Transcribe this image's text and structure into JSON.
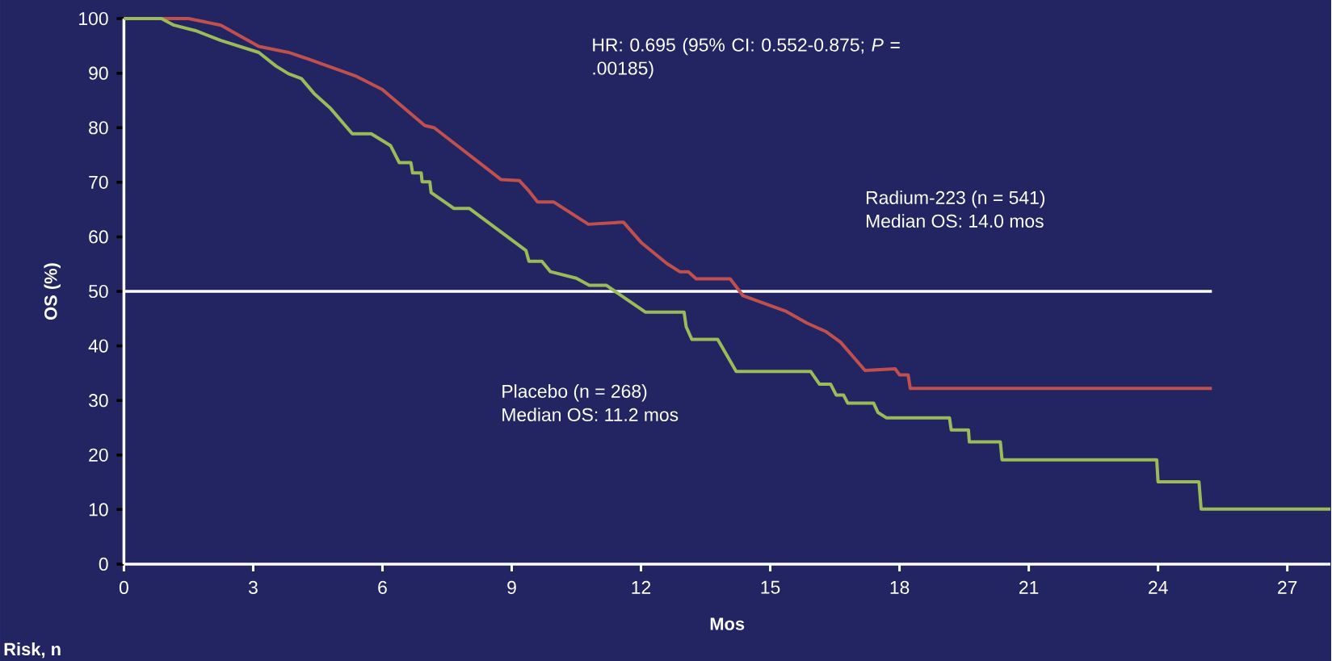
{
  "chart_data": {
    "type": "line",
    "xlabel": "Mos",
    "ylabel": "OS (%)",
    "xlim": [
      0,
      28
    ],
    "ylim": [
      0,
      100
    ],
    "xticks": [
      0,
      3,
      6,
      9,
      12,
      15,
      18,
      21,
      24,
      27
    ],
    "yticks": [
      0,
      10,
      20,
      30,
      40,
      50,
      60,
      70,
      80,
      90,
      100
    ],
    "grid": false,
    "ref_lines": [
      {
        "axis": "y",
        "value": 50,
        "color": "#ffffff"
      }
    ],
    "annotations": [
      "HR: 0.695 (95% CI: 0.552-0.875; *P* = .00185)",
      "Radium-223 (n = 541)",
      "Median OS: 14.0 mos",
      "Placebo (n = 268)",
      "Median OS: 11.2 mos",
      "Risk, n"
    ],
    "series": [
      {
        "color": "#c0504d",
        "x": [
          0,
          1.5,
          2.25,
          3.13,
          3.82,
          4.2,
          5.4,
          6.0,
          6.98,
          7.2,
          8.75,
          9.18,
          9.4,
          9.6,
          9.97,
          10.78,
          11.59,
          12.0,
          12.6,
          12.9,
          13.1,
          13.28,
          14.07,
          14.37,
          14.86,
          15.35,
          15.85,
          16.3,
          16.63,
          17.2,
          17.9,
          18.0,
          18.2,
          18.25,
          25.25
        ],
        "values": [
          100,
          100,
          98.8,
          94.9,
          93.8,
          92.8,
          89.4,
          87,
          80.4,
          80,
          70.5,
          70.3,
          68.4,
          66.4,
          66.4,
          62.3,
          62.7,
          59,
          55.1,
          53.6,
          53.6,
          52.3,
          52.3,
          49.2,
          47.8,
          46.4,
          44.2,
          42.6,
          40.7,
          35.5,
          35.8,
          34.7,
          34.7,
          32.2,
          32.2
        ]
      },
      {
        "color": "#9bbb59",
        "x": [
          0,
          0.87,
          1.16,
          1.66,
          2.25,
          3.13,
          3.53,
          3.82,
          4.12,
          4.41,
          4.8,
          5.3,
          5.74,
          6.19,
          6.39,
          6.66,
          6.7,
          6.9,
          6.92,
          7.1,
          7.13,
          7.66,
          8.02,
          9.33,
          9.4,
          9.7,
          9.9,
          10.5,
          10.8,
          11.2,
          11.6,
          12.1,
          13.0,
          13.05,
          13.18,
          13.78,
          14.21,
          15.94,
          16.14,
          16.4,
          16.53,
          16.7,
          16.8,
          17.4,
          17.5,
          17.7,
          19.16,
          19.2,
          19.6,
          19.62,
          20.34,
          20.38,
          23.97,
          24.0,
          24.95,
          25.0,
          28.0
        ],
        "values": [
          100,
          100,
          98.8,
          97.8,
          96,
          93.8,
          91.3,
          89.9,
          89,
          86.3,
          83.5,
          78.9,
          78.9,
          76.7,
          73.6,
          73.6,
          71.7,
          71.7,
          70.1,
          70.1,
          68.1,
          65.2,
          65.2,
          57.5,
          55.5,
          55.5,
          53.6,
          52.4,
          51.1,
          51.1,
          48.9,
          46.2,
          46.2,
          43.5,
          41.2,
          41.2,
          35.3,
          35.3,
          33,
          33,
          31,
          31,
          29.5,
          29.5,
          27.8,
          26.8,
          26.8,
          24.6,
          24.6,
          22.4,
          22.4,
          19.1,
          19.1,
          15.1,
          15.1,
          10.1,
          10.1
        ]
      }
    ]
  }
}
